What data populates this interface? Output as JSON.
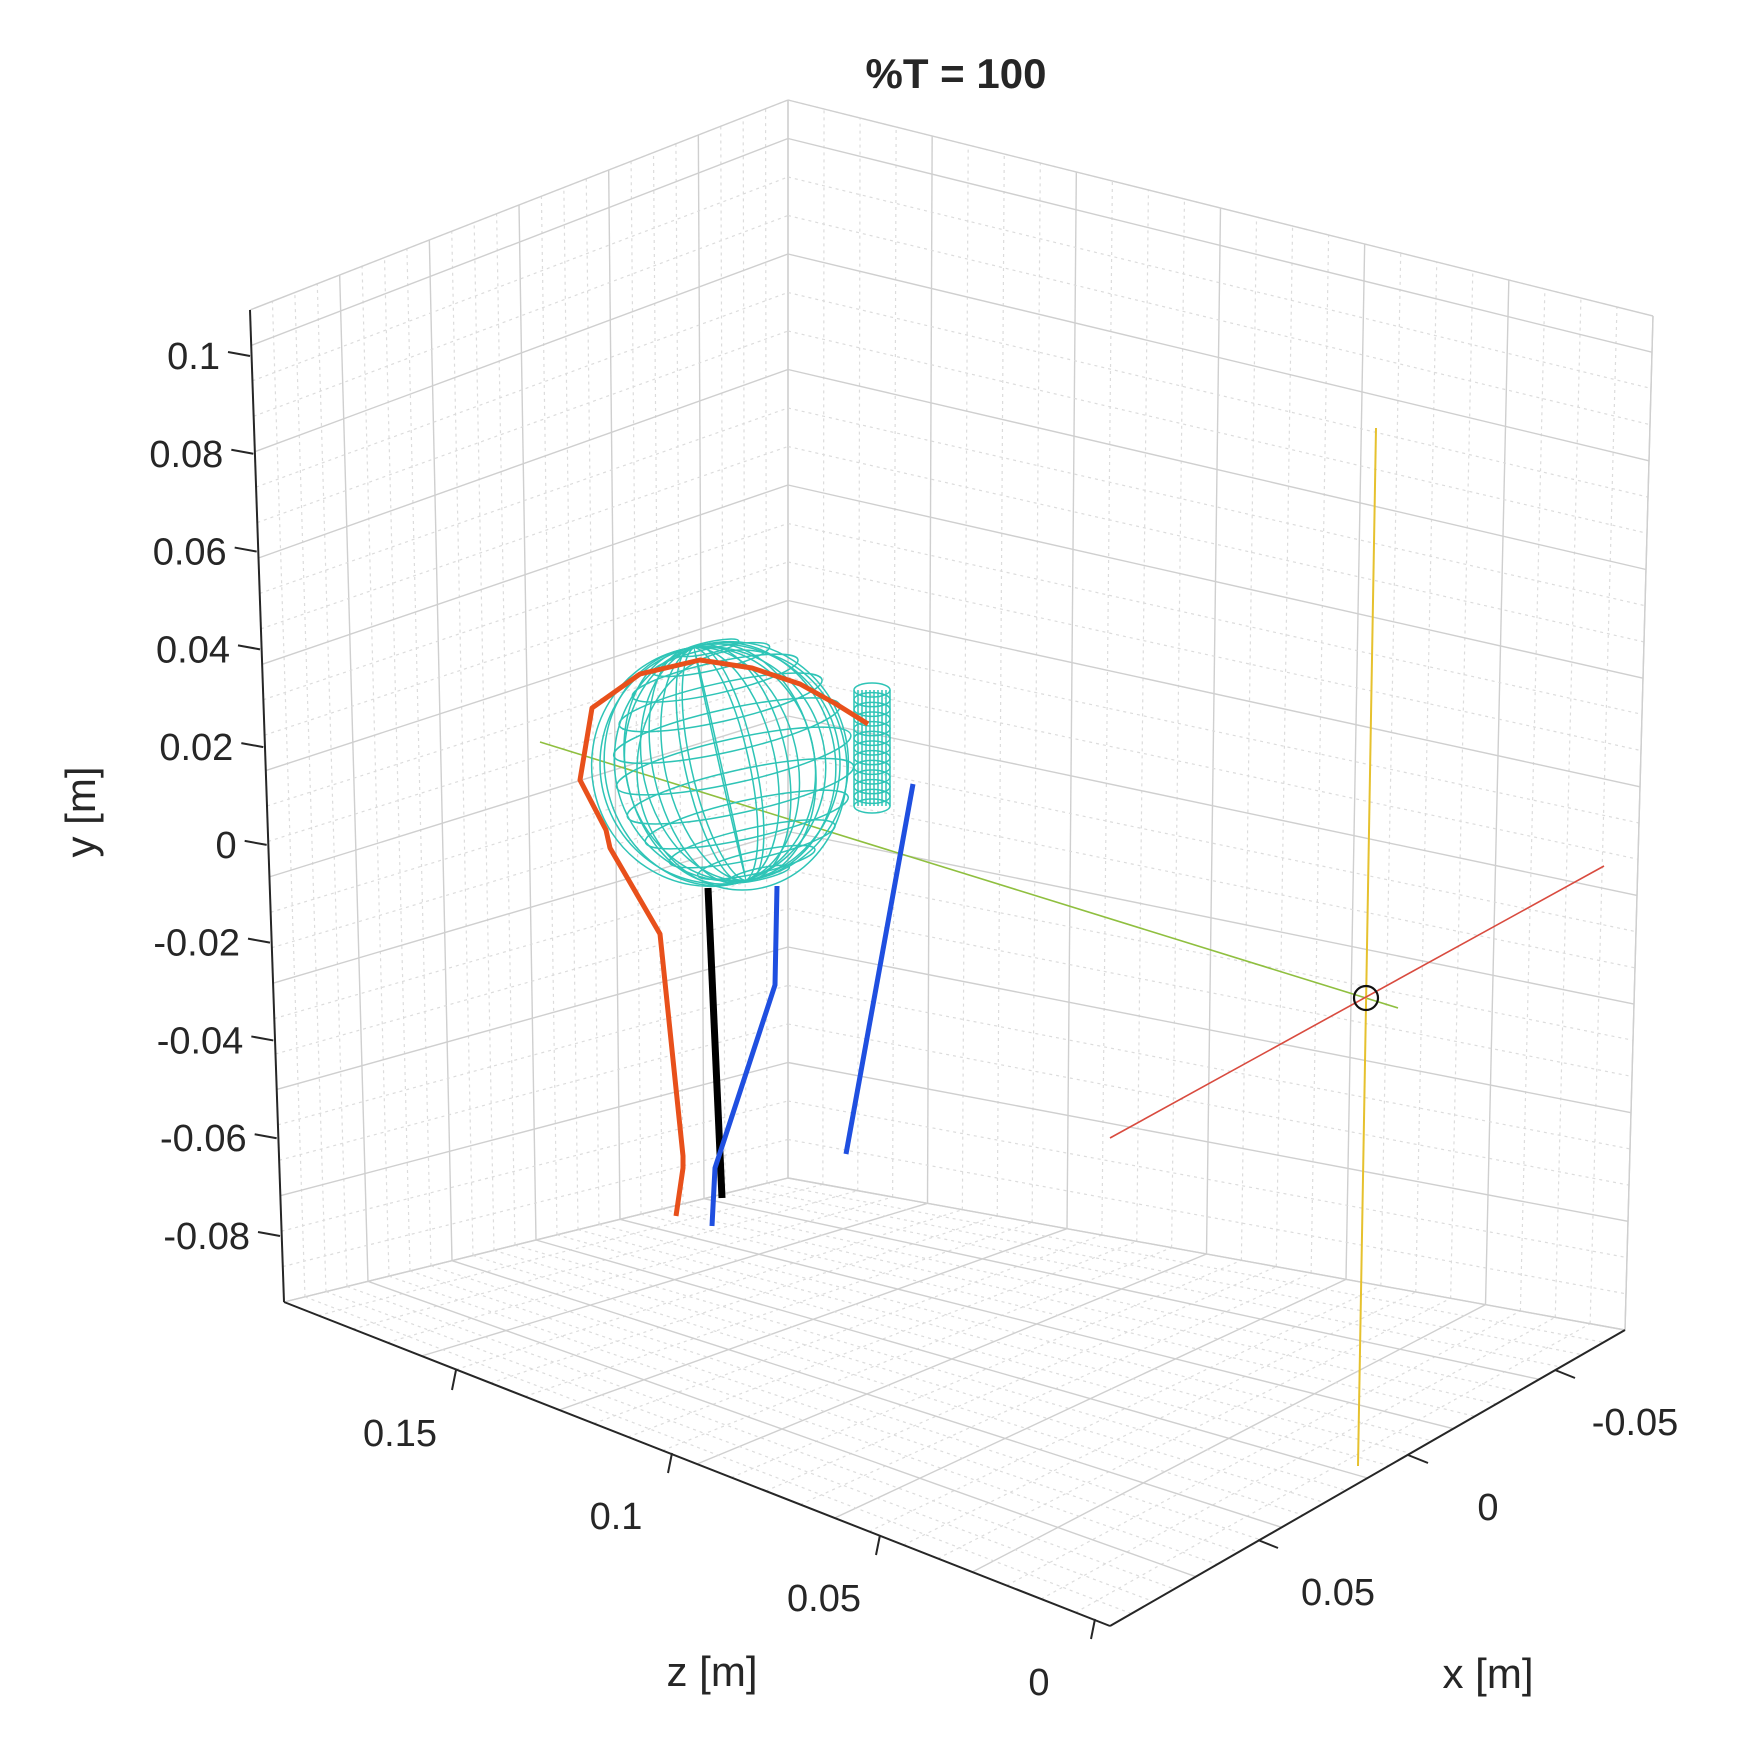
{
  "chart_data": {
    "type": "3d-line",
    "title": "%T = 100",
    "xlabel": "x [m]",
    "ylabel": "y [m]",
    "zlabel": "z [m]",
    "grid": true,
    "x_ticks": [
      "-0.05",
      "0",
      "0.05"
    ],
    "y_ticks": [
      "0.1",
      "0.08",
      "0.06",
      "0.04",
      "0.02",
      "0",
      "-0.02",
      "-0.04",
      "-0.06",
      "-0.08"
    ],
    "z_ticks": [
      "0.15",
      "0.1",
      "0.05",
      "0"
    ],
    "series": [
      {
        "kind": "orange-trajectory",
        "color": "#e8501b"
      },
      {
        "kind": "black-segment",
        "color": "#000000"
      },
      {
        "kind": "blue-line-1",
        "color": "#1f4fe0"
      },
      {
        "kind": "blue-line-2",
        "color": "#1f4fe0"
      },
      {
        "kind": "cyan-ellipsoid-mesh",
        "color": "#2ec4b6"
      },
      {
        "kind": "cyan-cylinder-mesh",
        "color": "#2ec4b6"
      },
      {
        "kind": "x-reference-line",
        "color": "#d94b3f"
      },
      {
        "kind": "y-reference-line",
        "color": "#e6c12e"
      },
      {
        "kind": "z-reference-line",
        "color": "#8fbf3f"
      },
      {
        "kind": "origin-marker",
        "color": "#000000"
      }
    ]
  }
}
